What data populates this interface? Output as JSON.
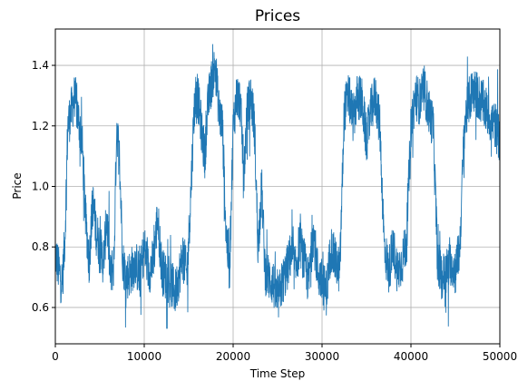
{
  "chart_data": {
    "type": "line",
    "title": "Prices",
    "xlabel": "Time Step",
    "ylabel": "Price",
    "xlim": [
      0,
      50000
    ],
    "ylim": [
      0.48,
      1.52
    ],
    "x_ticks": [
      0,
      10000,
      20000,
      30000,
      40000,
      50000
    ],
    "x_tick_labels": [
      "0",
      "10000",
      "20000",
      "30000",
      "40000",
      "50000"
    ],
    "y_ticks": [
      0.6,
      0.8,
      1.0,
      1.2,
      1.4
    ],
    "y_tick_labels": [
      "0.6",
      "0.8",
      "1.0",
      "1.2",
      "1.4"
    ],
    "grid": true,
    "line_color": "#1f77b4",
    "series": [
      {
        "x": [
          0,
          400,
          800,
          1100,
          1400,
          1800,
          2200,
          2600,
          3000,
          3400,
          3800,
          4200,
          4600,
          5000,
          5400,
          5800,
          6200,
          6600,
          6900,
          7200,
          7600,
          8000,
          8500,
          9000,
          9500,
          10000,
          10500,
          11000,
          11500,
          12000,
          12500,
          13000,
          13500,
          14000,
          14400,
          14800,
          15200,
          15600,
          16000,
          16400,
          16800,
          17200,
          17600,
          18000,
          18400,
          18800,
          19200,
          19600,
          20000,
          20400,
          20800,
          21200,
          21600,
          22000,
          22400,
          22800,
          23200,
          23600,
          24000,
          24500,
          25000,
          25500,
          26000,
          26500,
          27000,
          27500,
          28000,
          28500,
          29000,
          29500,
          30000,
          30500,
          31000,
          31500,
          32000,
          32500,
          33000,
          33500,
          34000,
          34500,
          35000,
          35500,
          36000,
          36500,
          37000,
          37500,
          38000,
          38500,
          39000,
          39500,
          40000,
          40500,
          41000,
          41500,
          42000,
          42500,
          43000,
          43500,
          44000,
          44500,
          45000,
          45500,
          46000,
          46500,
          47000,
          47500,
          48000,
          48500,
          49000,
          49500,
          50000
        ],
        "y": [
          0.78,
          0.72,
          0.68,
          0.85,
          1.2,
          1.25,
          1.3,
          1.22,
          1.15,
          0.9,
          0.75,
          0.95,
          0.85,
          0.8,
          0.75,
          0.9,
          0.7,
          0.75,
          1.2,
          1.1,
          0.75,
          0.7,
          0.72,
          0.75,
          0.7,
          0.8,
          0.72,
          0.75,
          0.9,
          0.72,
          0.7,
          0.68,
          0.65,
          0.72,
          0.78,
          0.7,
          0.95,
          1.25,
          1.3,
          1.2,
          1.1,
          1.28,
          1.35,
          1.4,
          1.25,
          1.2,
          0.85,
          0.72,
          1.2,
          1.3,
          1.28,
          1.05,
          1.25,
          1.3,
          1.2,
          0.8,
          1.0,
          0.72,
          0.7,
          0.68,
          0.62,
          0.68,
          0.72,
          0.78,
          0.72,
          0.82,
          0.75,
          0.68,
          0.85,
          0.72,
          0.68,
          0.65,
          0.8,
          0.75,
          0.72,
          1.25,
          1.3,
          1.22,
          1.3,
          1.28,
          1.15,
          1.25,
          1.3,
          1.2,
          0.8,
          0.72,
          0.8,
          0.72,
          0.75,
          0.82,
          1.2,
          1.3,
          1.28,
          1.32,
          1.25,
          1.2,
          0.75,
          0.7,
          0.72,
          0.75,
          0.72,
          0.8,
          1.2,
          1.28,
          1.32,
          1.3,
          1.28,
          1.25,
          1.22,
          1.2,
          1.15
        ]
      }
    ]
  }
}
